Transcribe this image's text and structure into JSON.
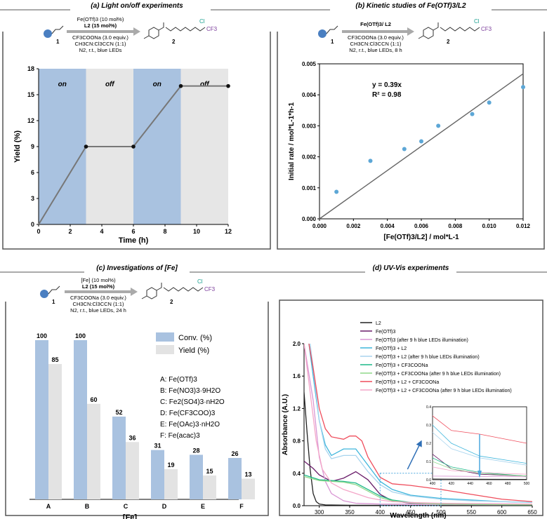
{
  "panels": {
    "a": {
      "title": "(a) Light on/off experiments"
    },
    "b": {
      "title": "(b) Kinetic studies of Fe(OTf)3/L2"
    },
    "c": {
      "title": "(c) Investigations of [Fe]"
    },
    "d": {
      "title": "(d) UV-Vis experiments"
    }
  },
  "schemes": {
    "a": {
      "above": [
        "Fe(OTf)3 (10 mol%)",
        "L2 (15 mol%)"
      ],
      "below": [
        "CF3COONa (3.0 equiv.)",
        "CH3CN:Cl3CCN (1:1)",
        "N2, r.t., blue LEDs"
      ],
      "reactant": "1",
      "product": "2",
      "cl": "Cl",
      "cf3": "CF3"
    },
    "b": {
      "above": [
        "Fe(OTf)3/ L2"
      ],
      "below": [
        "CF3COONa (3.0 equiv.)",
        "CH3CN:Cl3CCN (1:1)",
        "N2, r.t., blue LEDs, 8 h"
      ],
      "reactant": "1",
      "product": "2",
      "cl": "Cl",
      "cf3": "CF3"
    },
    "c": {
      "above": [
        "[Fe] (10 mol%)",
        "L2 (15 mol%)"
      ],
      "below": [
        "CF3COONa (3.0 equiv.)",
        "CH3CN:Cl3CCN (1:1)",
        "N2, r.t., blue LEDs, 24 h"
      ],
      "reactant": "1",
      "product": "2",
      "cl": "Cl",
      "cf3": "CF3"
    }
  },
  "chart_data": [
    {
      "id": "a",
      "type": "line",
      "title": "(a) Light on/off experiments",
      "xlabel": "Time (h)",
      "ylabel": "Yield (%)",
      "xlim": [
        0,
        12
      ],
      "ylim": [
        0,
        18
      ],
      "xticks": [
        0,
        2,
        4,
        6,
        8,
        10,
        12
      ],
      "yticks": [
        0,
        3,
        6,
        9,
        12,
        15,
        18
      ],
      "regions": [
        {
          "x0": 0,
          "x1": 3,
          "state": "on",
          "color": "#a9c2e0"
        },
        {
          "x0": 3,
          "x1": 6,
          "state": "off",
          "color": "#e6e6e6"
        },
        {
          "x0": 6,
          "x1": 9,
          "state": "on",
          "color": "#a9c2e0"
        },
        {
          "x0": 9,
          "x1": 12,
          "state": "off",
          "color": "#e6e6e6"
        }
      ],
      "x": [
        0,
        3,
        6,
        9,
        12
      ],
      "y": [
        0,
        9,
        9,
        16,
        16
      ]
    },
    {
      "id": "b",
      "type": "scatter",
      "title": "(b) Kinetic studies of Fe(OTf)3/L2",
      "xlabel": "[Fe(OTf)3/L2] / mol*L-1",
      "ylabel": "Initial rate / mol*L-1*h-1",
      "xlim": [
        0,
        0.012
      ],
      "ylim": [
        0,
        0.005
      ],
      "xticks": [
        "0.000",
        "0.002",
        "0.004",
        "0.006",
        "0.008",
        "0.010",
        "0.012"
      ],
      "yticks": [
        "0.000",
        "0.001",
        "0.002",
        "0.003",
        "0.004",
        "0.005"
      ],
      "x": [
        0.001,
        0.003,
        0.005,
        0.006,
        0.007,
        0.009,
        0.01,
        0.012
      ],
      "y": [
        0.00087,
        0.00187,
        0.00225,
        0.0025,
        0.003,
        0.00338,
        0.00375,
        0.00425
      ],
      "fit": {
        "slope": 0.39,
        "equation": "y = 0.39x",
        "r2": "R² = 0.98"
      }
    },
    {
      "id": "c",
      "type": "bar",
      "xlabel": "[Fe]",
      "categories": [
        "A",
        "B",
        "C",
        "D",
        "E",
        "F"
      ],
      "ylim": [
        0,
        100
      ],
      "series": [
        {
          "name": "Conv. (%)",
          "color": "#a9c2e0",
          "values": [
            100,
            100,
            52,
            31,
            28,
            26
          ]
        },
        {
          "name": "Yield (%)",
          "color": "#e3e3e3",
          "values": [
            85,
            60,
            36,
            19,
            15,
            13
          ]
        }
      ],
      "catalysts": [
        "A: Fe(OTf)3",
        "B: Fe(NO3)3·9H2O",
        "C: Fe2(SO4)3·nH2O",
        "D: Fe(CF3COO)3",
        "E: Fe(OAc)3·nH2O",
        "F: Fe(acac)3"
      ]
    },
    {
      "id": "d",
      "type": "line",
      "xlabel": "Wavelength (nm)",
      "ylabel": "Absorbance (A.U.)",
      "xlim": [
        275,
        650
      ],
      "ylim": [
        0,
        2.0
      ],
      "xticks": [
        300,
        350,
        400,
        450,
        500,
        550,
        600,
        650
      ],
      "yticks": [
        "0.0",
        "0.4",
        "0.8",
        "1.2",
        "1.6",
        "2.0"
      ],
      "legend": [
        "L2",
        "Fe(OTf)3",
        "Fe(OTf)3 (after 9 h blue LEDs illumination)",
        "Fe(OTf)3 + L2",
        "Fe(OTf)3 + L2 (after 9 h blue LEDs illumination)",
        "Fe(OTf)3 + CF3COONa",
        "Fe(OTf)3 + CF3COONa (after 9 h blue LEDs illumination)",
        "Fe(OTf)3 + L2 + CF3COONa",
        "Fe(OTf)3 + L2 + CF3COONa (after 9 h blue LEDs illumination)"
      ],
      "series": [
        {
          "name": "L2",
          "color": "#222222",
          "x": [
            275,
            280,
            285,
            290,
            295,
            300,
            310,
            350,
            650
          ],
          "y": [
            1.4,
            0.9,
            0.45,
            0.15,
            0.05,
            0.02,
            0.01,
            0.005,
            0.0
          ]
        },
        {
          "name": "Fe(OTf)3",
          "color": "#6a1d6a",
          "x": [
            275,
            290,
            300,
            320,
            340,
            360,
            380,
            400,
            420,
            450,
            500,
            650
          ],
          "y": [
            0.55,
            0.46,
            0.38,
            0.3,
            0.34,
            0.42,
            0.32,
            0.14,
            0.06,
            0.03,
            0.02,
            0.01
          ]
        },
        {
          "name": "Fe(OTf)3 (after 9 h blue LEDs illumination)",
          "color": "#d996d4",
          "x": [
            275,
            290,
            300,
            310,
            320,
            340,
            360,
            400,
            650
          ],
          "y": [
            2.0,
            1.3,
            0.6,
            0.3,
            0.15,
            0.06,
            0.03,
            0.02,
            0.01
          ]
        },
        {
          "name": "Fe(OTf)3 + L2",
          "color": "#3fb6dc",
          "x": [
            283,
            290,
            300,
            310,
            320,
            340,
            360,
            380,
            400,
            420,
            450,
            500,
            550,
            600,
            650
          ],
          "y": [
            2.0,
            1.6,
            1.05,
            0.75,
            0.62,
            0.7,
            0.7,
            0.5,
            0.3,
            0.2,
            0.13,
            0.09,
            0.07,
            0.05,
            0.04
          ]
        },
        {
          "name": "Fe(OTf)3 + L2 (after 9 h blue LEDs illumination)",
          "color": "#a8d4ee",
          "x": [
            285,
            290,
            300,
            310,
            320,
            340,
            360,
            380,
            400,
            420,
            450,
            500,
            550,
            600,
            650
          ],
          "y": [
            2.0,
            1.7,
            1.05,
            0.7,
            0.58,
            0.62,
            0.62,
            0.42,
            0.26,
            0.17,
            0.12,
            0.08,
            0.06,
            0.05,
            0.04
          ]
        },
        {
          "name": "Fe(OTf)3 + CF3COONa",
          "color": "#1cb888",
          "x": [
            275,
            300,
            320,
            340,
            360,
            380,
            400,
            420,
            450,
            500,
            650
          ],
          "y": [
            0.38,
            0.32,
            0.31,
            0.3,
            0.28,
            0.2,
            0.12,
            0.07,
            0.04,
            0.02,
            0.01
          ]
        },
        {
          "name": "Fe(OTf)3 + CF3COONa (after 9 h blue LEDs illumination)",
          "color": "#8fd88a",
          "x": [
            275,
            300,
            320,
            340,
            360,
            380,
            400,
            420,
            450,
            500,
            650
          ],
          "y": [
            0.36,
            0.31,
            0.3,
            0.29,
            0.26,
            0.18,
            0.1,
            0.06,
            0.035,
            0.02,
            0.01
          ]
        },
        {
          "name": "Fe(OTf)3 + L2 + CF3COONa",
          "color": "#ef4d5c",
          "x": [
            283,
            290,
            300,
            310,
            320,
            340,
            350,
            360,
            370,
            380,
            400,
            420,
            450,
            500,
            550,
            600,
            650
          ],
          "y": [
            2.0,
            1.7,
            1.2,
            0.95,
            0.85,
            0.82,
            0.86,
            0.86,
            0.8,
            0.6,
            0.35,
            0.27,
            0.25,
            0.2,
            0.14,
            0.08,
            0.05
          ]
        },
        {
          "name": "Fe(OTf)3 + L2 + CF3COONa (after 9 h blue LEDs illumination)",
          "color": "#f4a6c8",
          "x": [
            275,
            285,
            295,
            305,
            320,
            340,
            360,
            380,
            400,
            420,
            450,
            500,
            650
          ],
          "y": [
            2.0,
            1.4,
            0.8,
            0.45,
            0.28,
            0.2,
            0.15,
            0.1,
            0.07,
            0.05,
            0.04,
            0.03,
            0.02
          ]
        }
      ],
      "inset": {
        "xlim": [
          400,
          500
        ],
        "ylim": [
          0,
          0.4
        ],
        "xticks": [
          "400",
          "420",
          "440",
          "460",
          "480",
          "500"
        ],
        "yticks": [
          "0.0",
          "0.1",
          "0.2",
          "0.3",
          "0.4"
        ]
      }
    }
  ]
}
